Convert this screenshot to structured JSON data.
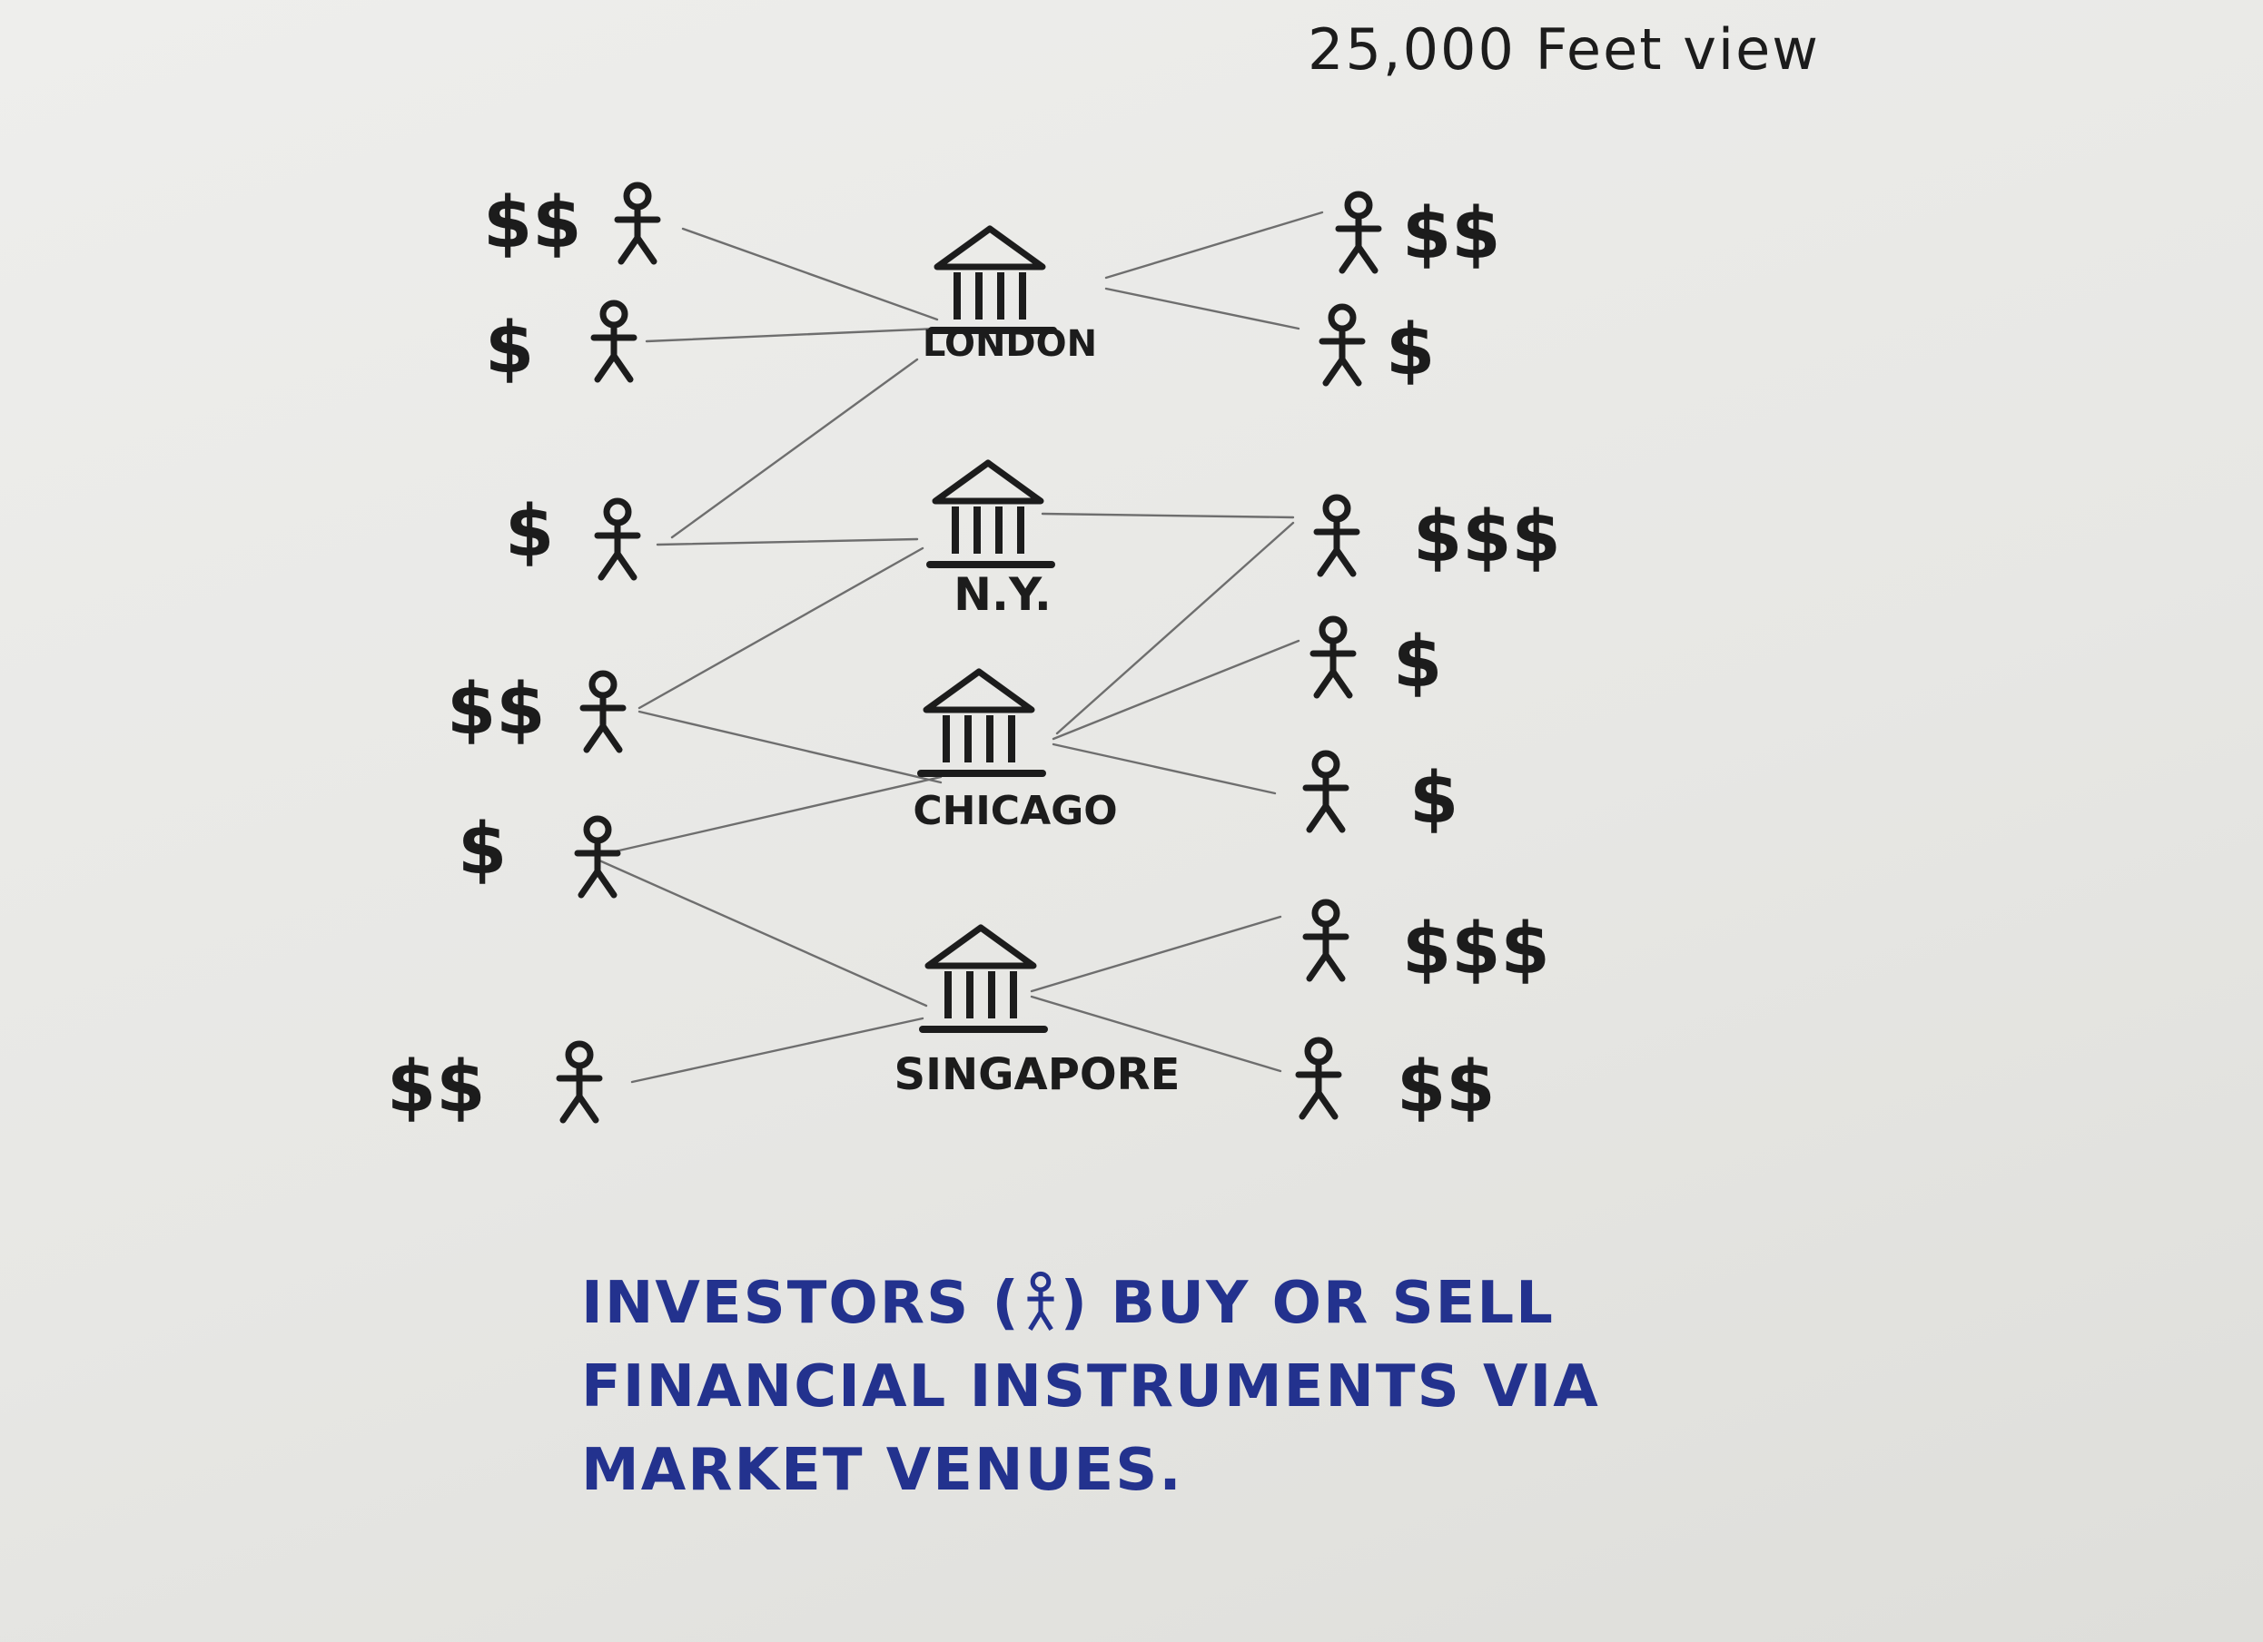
{
  "title": "25,000 Feet view",
  "colors": {
    "ink": "#1c1c1c",
    "blue_ink": "#23328e",
    "line": "#6e6e6e"
  },
  "icons": {
    "investor": "stick-figure-icon",
    "venue": "bank-building-icon"
  },
  "venues": [
    {
      "label": "LONDON"
    },
    {
      "label": "N.Y."
    },
    {
      "label": "CHICAGO"
    },
    {
      "label": "SINGAPORE"
    }
  ],
  "left_investors": [
    {
      "money": "$$"
    },
    {
      "money": "$"
    },
    {
      "money": "$"
    },
    {
      "money": "$$"
    },
    {
      "money": "$"
    },
    {
      "money": "$$"
    }
  ],
  "right_investors": [
    {
      "money": "$$"
    },
    {
      "money": "$"
    },
    {
      "money": "$$$"
    },
    {
      "money": "$"
    },
    {
      "money": "$"
    },
    {
      "money": "$$$"
    },
    {
      "money": "$$"
    }
  ],
  "connections": [
    {
      "from": "left-1",
      "to": "LONDON"
    },
    {
      "from": "left-2",
      "to": "LONDON"
    },
    {
      "from": "left-3",
      "to": "LONDON"
    },
    {
      "from": "left-3",
      "to": "N.Y."
    },
    {
      "from": "left-4",
      "to": "N.Y."
    },
    {
      "from": "left-4",
      "to": "CHICAGO"
    },
    {
      "from": "left-5",
      "to": "CHICAGO"
    },
    {
      "from": "left-5",
      "to": "SINGAPORE"
    },
    {
      "from": "left-6",
      "to": "SINGAPORE"
    },
    {
      "from": "LONDON",
      "to": "right-1"
    },
    {
      "from": "LONDON",
      "to": "right-2"
    },
    {
      "from": "N.Y.",
      "to": "right-3"
    },
    {
      "from": "CHICAGO",
      "to": "right-3"
    },
    {
      "from": "CHICAGO",
      "to": "right-4"
    },
    {
      "from": "CHICAGO",
      "to": "right-5"
    },
    {
      "from": "SINGAPORE",
      "to": "right-6"
    },
    {
      "from": "SINGAPORE",
      "to": "right-7"
    }
  ],
  "note": {
    "line1_before": "INVESTORS (",
    "line1_after": ") BUY OR SELL",
    "line2": "FINANCIAL INSTRUMENTS VIA",
    "line3": "MARKET VENUES."
  }
}
